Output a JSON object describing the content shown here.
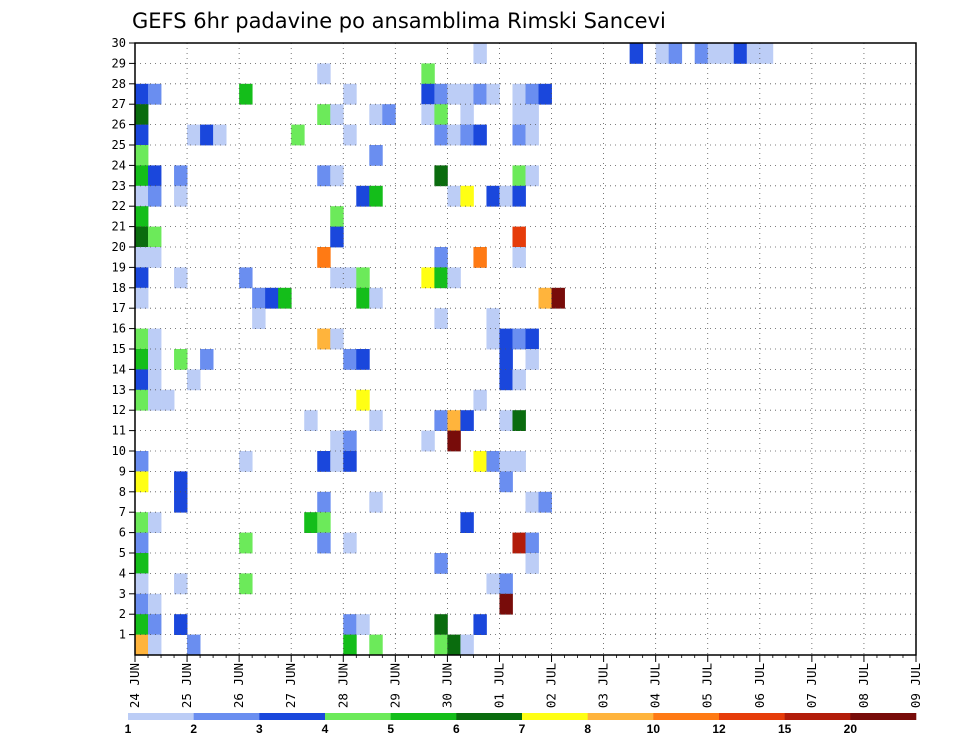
{
  "chart_data": {
    "type": "heatmap",
    "title": "GEFS 6hr padavine po ansamblima Rimski Sancevi",
    "y_ticks": [
      1,
      2,
      3,
      4,
      5,
      6,
      7,
      8,
      9,
      10,
      11,
      12,
      13,
      14,
      15,
      16,
      17,
      18,
      19,
      20,
      21,
      22,
      23,
      24,
      25,
      26,
      27,
      28,
      29,
      30
    ],
    "x_ticks": [
      "24 JUN",
      "25 JUN",
      "26 JUN",
      "27 JUN",
      "28 JUN",
      "29 JUN",
      "30 JUN",
      "01 JUL",
      "02 JUL",
      "03 JUL",
      "04 JUL",
      "05 JUL",
      "06 JUL",
      "07 JUL",
      "08 JUL",
      "09 JUL"
    ],
    "colorbar": {
      "labels": [
        "1",
        "2",
        "3",
        "4",
        "5",
        "6",
        "7",
        "8",
        "10",
        "12",
        "15",
        "20"
      ],
      "colors": [
        "#bccdf6",
        "#6a8ef0",
        "#1a47dc",
        "#6cea5a",
        "#14be1a",
        "#0a6c0e",
        "#ffff14",
        "#ffb43c",
        "#ff7a14",
        "#e63c0a",
        "#b21c0a",
        "#780c0a"
      ]
    },
    "grid": "dotted",
    "cells": [
      [
        30,
        26,
        0
      ],
      [
        30,
        38,
        2
      ],
      [
        30,
        40,
        0
      ],
      [
        30,
        41,
        1
      ],
      [
        30,
        43,
        1
      ],
      [
        30,
        44,
        0
      ],
      [
        30,
        45,
        0
      ],
      [
        30,
        46,
        2
      ],
      [
        30,
        47,
        0
      ],
      [
        30,
        48,
        0
      ],
      [
        29,
        14,
        0
      ],
      [
        29,
        22,
        3
      ],
      [
        28,
        0,
        2
      ],
      [
        28,
        1,
        1
      ],
      [
        28,
        8,
        4
      ],
      [
        28,
        16,
        0
      ],
      [
        28,
        22,
        2
      ],
      [
        28,
        23,
        1
      ],
      [
        28,
        24,
        0
      ],
      [
        28,
        25,
        0
      ],
      [
        28,
        26,
        1
      ],
      [
        28,
        27,
        0
      ],
      [
        28,
        29,
        0
      ],
      [
        28,
        30,
        1
      ],
      [
        28,
        31,
        2
      ],
      [
        27,
        0,
        5
      ],
      [
        27,
        14,
        3
      ],
      [
        27,
        15,
        0
      ],
      [
        27,
        18,
        0
      ],
      [
        27,
        19,
        1
      ],
      [
        27,
        22,
        0
      ],
      [
        27,
        23,
        3
      ],
      [
        27,
        25,
        0
      ],
      [
        27,
        29,
        0
      ],
      [
        27,
        30,
        0
      ],
      [
        26,
        0,
        2
      ],
      [
        26,
        4,
        0
      ],
      [
        26,
        5,
        2
      ],
      [
        26,
        6,
        0
      ],
      [
        26,
        12,
        3
      ],
      [
        26,
        16,
        0
      ],
      [
        26,
        23,
        1
      ],
      [
        26,
        24,
        0
      ],
      [
        26,
        25,
        1
      ],
      [
        26,
        26,
        2
      ],
      [
        26,
        29,
        1
      ],
      [
        26,
        30,
        0
      ],
      [
        25,
        0,
        3
      ],
      [
        25,
        18,
        1
      ],
      [
        24,
        0,
        4
      ],
      [
        24,
        1,
        2
      ],
      [
        24,
        3,
        1
      ],
      [
        24,
        14,
        1
      ],
      [
        24,
        15,
        0
      ],
      [
        24,
        23,
        5
      ],
      [
        24,
        29,
        3
      ],
      [
        24,
        30,
        0
      ],
      [
        23,
        0,
        0
      ],
      [
        23,
        1,
        1
      ],
      [
        23,
        3,
        0
      ],
      [
        23,
        17,
        2
      ],
      [
        23,
        18,
        4
      ],
      [
        23,
        24,
        0
      ],
      [
        23,
        25,
        6
      ],
      [
        23,
        27,
        2
      ],
      [
        23,
        28,
        0
      ],
      [
        23,
        29,
        2
      ],
      [
        22,
        0,
        4
      ],
      [
        22,
        15,
        3
      ],
      [
        21,
        0,
        5
      ],
      [
        21,
        1,
        3
      ],
      [
        21,
        15,
        2
      ],
      [
        21,
        29,
        9
      ],
      [
        20,
        0,
        0
      ],
      [
        20,
        1,
        0
      ],
      [
        20,
        14,
        8
      ],
      [
        20,
        23,
        1
      ],
      [
        20,
        26,
        8
      ],
      [
        20,
        29,
        0
      ],
      [
        19,
        0,
        2
      ],
      [
        19,
        3,
        0
      ],
      [
        19,
        8,
        1
      ],
      [
        19,
        15,
        0
      ],
      [
        19,
        16,
        0
      ],
      [
        19,
        17,
        3
      ],
      [
        19,
        22,
        6
      ],
      [
        19,
        23,
        4
      ],
      [
        19,
        24,
        0
      ],
      [
        18,
        0,
        0
      ],
      [
        18,
        9,
        1
      ],
      [
        18,
        10,
        2
      ],
      [
        18,
        11,
        4
      ],
      [
        18,
        17,
        4
      ],
      [
        18,
        18,
        0
      ],
      [
        18,
        31,
        7
      ],
      [
        18,
        32,
        11
      ],
      [
        17,
        9,
        0
      ],
      [
        17,
        23,
        0
      ],
      [
        17,
        27,
        0
      ],
      [
        16,
        0,
        3
      ],
      [
        16,
        1,
        0
      ],
      [
        16,
        14,
        7
      ],
      [
        16,
        15,
        0
      ],
      [
        16,
        27,
        0
      ],
      [
        16,
        28,
        2
      ],
      [
        16,
        29,
        1
      ],
      [
        16,
        30,
        2
      ],
      [
        15,
        0,
        4
      ],
      [
        15,
        1,
        0
      ],
      [
        15,
        3,
        3
      ],
      [
        15,
        5,
        1
      ],
      [
        15,
        16,
        1
      ],
      [
        15,
        17,
        2
      ],
      [
        15,
        28,
        2
      ],
      [
        15,
        30,
        0
      ],
      [
        14,
        0,
        2
      ],
      [
        14,
        1,
        0
      ],
      [
        14,
        4,
        0
      ],
      [
        14,
        28,
        2
      ],
      [
        14,
        29,
        0
      ],
      [
        13,
        0,
        3
      ],
      [
        13,
        1,
        0
      ],
      [
        13,
        2,
        0
      ],
      [
        13,
        17,
        6
      ],
      [
        13,
        26,
        0
      ],
      [
        12,
        13,
        0
      ],
      [
        12,
        18,
        0
      ],
      [
        12,
        23,
        1
      ],
      [
        12,
        24,
        7
      ],
      [
        12,
        25,
        2
      ],
      [
        12,
        28,
        0
      ],
      [
        12,
        29,
        5
      ],
      [
        11,
        15,
        0
      ],
      [
        11,
        16,
        1
      ],
      [
        11,
        22,
        0
      ],
      [
        11,
        24,
        11
      ],
      [
        10,
        0,
        1
      ],
      [
        10,
        8,
        0
      ],
      [
        10,
        14,
        2
      ],
      [
        10,
        15,
        0
      ],
      [
        10,
        16,
        2
      ],
      [
        10,
        26,
        6
      ],
      [
        10,
        27,
        1
      ],
      [
        10,
        28,
        0
      ],
      [
        10,
        29,
        0
      ],
      [
        9,
        0,
        6
      ],
      [
        9,
        3,
        2
      ],
      [
        9,
        28,
        1
      ],
      [
        8,
        3,
        2
      ],
      [
        8,
        14,
        1
      ],
      [
        8,
        18,
        0
      ],
      [
        8,
        30,
        0
      ],
      [
        8,
        31,
        1
      ],
      [
        7,
        0,
        3
      ],
      [
        7,
        1,
        0
      ],
      [
        7,
        13,
        4
      ],
      [
        7,
        14,
        3
      ],
      [
        7,
        25,
        2
      ],
      [
        6,
        0,
        1
      ],
      [
        6,
        8,
        3
      ],
      [
        6,
        14,
        1
      ],
      [
        6,
        16,
        0
      ],
      [
        6,
        29,
        10
      ],
      [
        6,
        30,
        1
      ],
      [
        5,
        0,
        4
      ],
      [
        5,
        23,
        1
      ],
      [
        5,
        30,
        0
      ],
      [
        4,
        0,
        0
      ],
      [
        4,
        3,
        0
      ],
      [
        4,
        8,
        3
      ],
      [
        4,
        27,
        0
      ],
      [
        4,
        28,
        1
      ],
      [
        3,
        0,
        1
      ],
      [
        3,
        1,
        0
      ],
      [
        3,
        28,
        11
      ],
      [
        2,
        0,
        4
      ],
      [
        2,
        1,
        1
      ],
      [
        2,
        3,
        2
      ],
      [
        2,
        16,
        1
      ],
      [
        2,
        17,
        0
      ],
      [
        2,
        23,
        5
      ],
      [
        2,
        26,
        2
      ],
      [
        1,
        0,
        7
      ],
      [
        1,
        1,
        0
      ],
      [
        1,
        4,
        1
      ],
      [
        1,
        16,
        4
      ],
      [
        1,
        18,
        3
      ],
      [
        1,
        23,
        3
      ],
      [
        1,
        24,
        5
      ],
      [
        1,
        25,
        0
      ]
    ]
  }
}
